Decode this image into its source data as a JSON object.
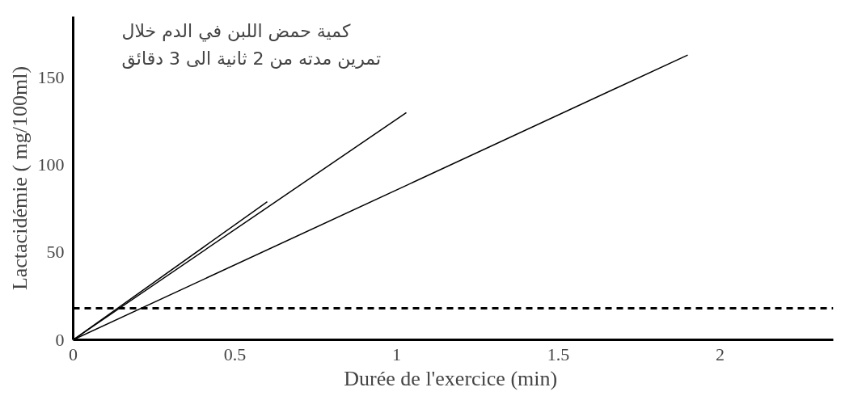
{
  "chart_data": {
    "type": "line",
    "xlabel": "Durée  de l'exercice (min)",
    "ylabel": "Lactacidémie ( mg/100ml)",
    "annotations": [
      "كمية حمض اللبن في الدم خلال",
      "تمرين مدته من 2 ثانية الى 3 دقائق"
    ],
    "series": [
      {
        "color": "#000000",
        "x": [
          0,
          0.6
        ],
        "values": [
          0,
          79
        ]
      },
      {
        "color": "#000000",
        "x": [
          0,
          1.03
        ],
        "values": [
          0,
          130
        ]
      },
      {
        "color": "#000000",
        "x": [
          0,
          1.9
        ],
        "values": [
          0,
          163
        ]
      }
    ],
    "ref_lines": [
      {
        "axis": "y",
        "value": 18,
        "label": null,
        "color": "#000000",
        "line_style": "dashed"
      }
    ],
    "xlim": [
      0,
      2.35
    ],
    "ylim": [
      0,
      185
    ],
    "xticks": [
      0,
      0.5,
      1,
      1.5,
      2
    ],
    "yticks": [
      0,
      50,
      100,
      150
    ],
    "grid": false,
    "line_style": "solid",
    "marker": "none"
  }
}
